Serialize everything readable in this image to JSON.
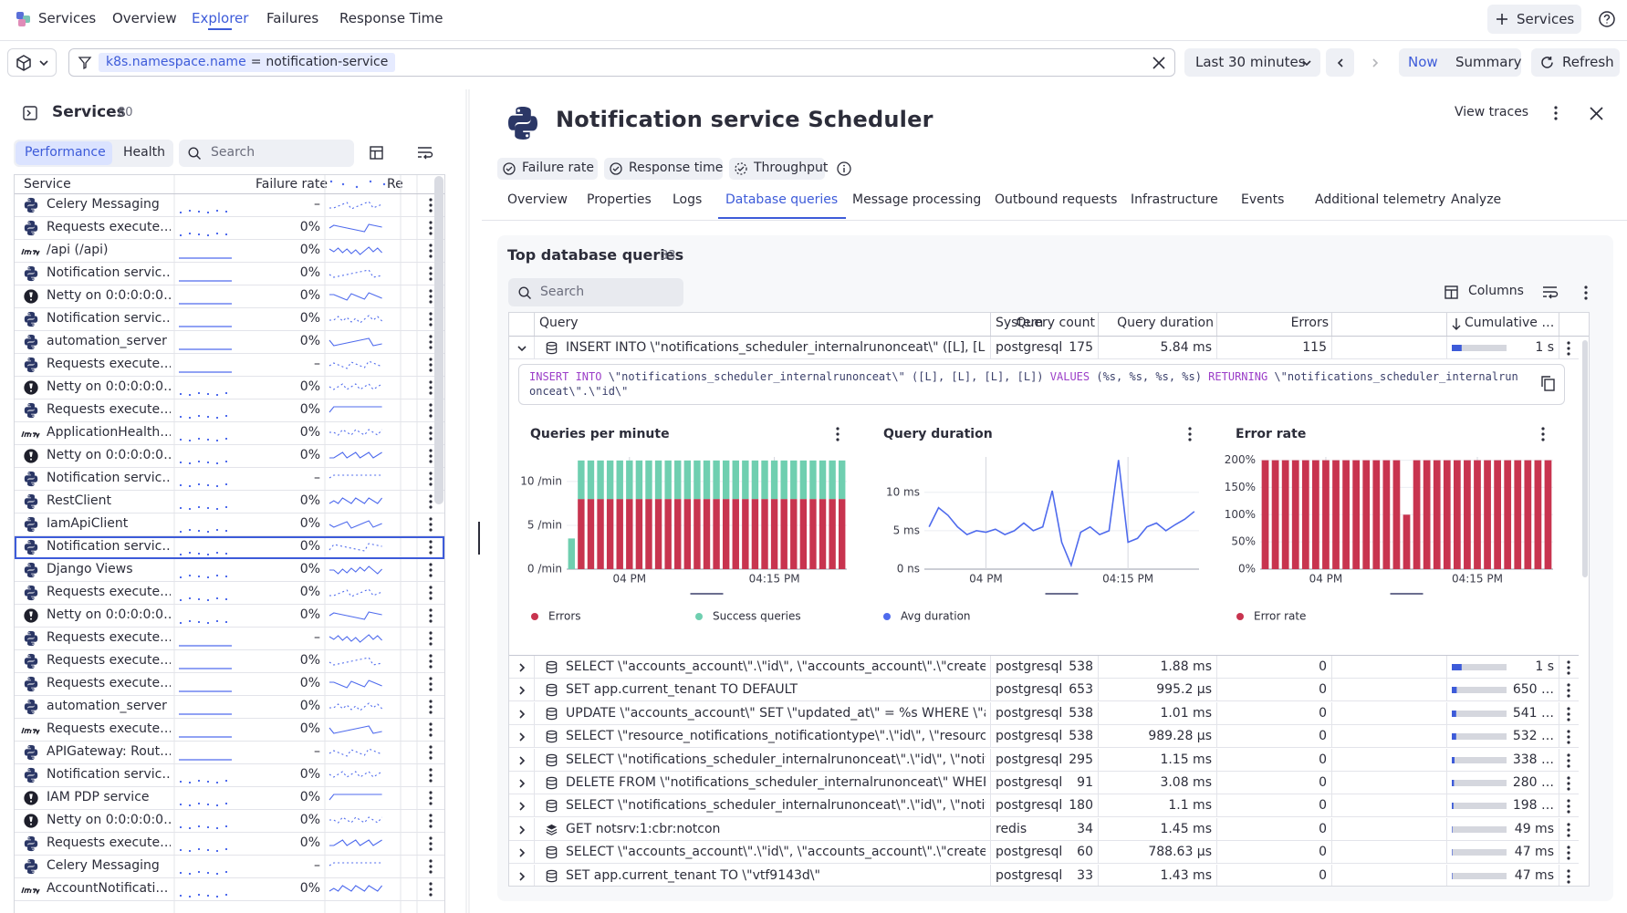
{
  "nav": {
    "app": "Services",
    "tabs": [
      "Overview",
      "Explorer",
      "Failures",
      "Response Time"
    ],
    "active_tab": 1,
    "add_button": "Services"
  },
  "filter": {
    "key": "k8s.namespace.name",
    "operator": "=",
    "value": "notification-service"
  },
  "time": {
    "range": "Last 30 minutes",
    "now": "Now",
    "summary": "Summary",
    "refresh": "Refresh"
  },
  "services_panel": {
    "title": "Services",
    "count": 80,
    "toggle": [
      "Performance",
      "Health"
    ],
    "search_placeholder": "Search",
    "columns": [
      "Service",
      "Failure rate",
      "Re"
    ],
    "selected_row": 15,
    "rows": [
      {
        "name": "Celery Messaging",
        "failure_rate": "–",
        "icon": "python"
      },
      {
        "name": "Requests execute…",
        "failure_rate": "0%",
        "icon": "python"
      },
      {
        "name": "/api (/api)",
        "failure_rate": "0%",
        "icon": "jetty"
      },
      {
        "name": "Notification servic…",
        "failure_rate": "0%",
        "icon": "python"
      },
      {
        "name": "Netty on 0:0:0:0:0…",
        "failure_rate": "0%",
        "icon": "netty"
      },
      {
        "name": "Notification servic…",
        "failure_rate": "0%",
        "icon": "python"
      },
      {
        "name": "automation_server",
        "failure_rate": "0%",
        "icon": "python"
      },
      {
        "name": "Requests execute…",
        "failure_rate": "–",
        "icon": "python"
      },
      {
        "name": "Netty on 0:0:0:0:0…",
        "failure_rate": "0%",
        "icon": "netty"
      },
      {
        "name": "Requests execute…",
        "failure_rate": "0%",
        "icon": "python"
      },
      {
        "name": "ApplicationHealth…",
        "failure_rate": "0%",
        "icon": "jetty"
      },
      {
        "name": "Netty on 0:0:0:0:0…",
        "failure_rate": "0%",
        "icon": "netty"
      },
      {
        "name": "Notification servic…",
        "failure_rate": "–",
        "icon": "python"
      },
      {
        "name": "RestClient",
        "failure_rate": "0%",
        "icon": "python"
      },
      {
        "name": "IamApiClient",
        "failure_rate": "0%",
        "icon": "python"
      },
      {
        "name": "Notification servic…",
        "failure_rate": "0%",
        "icon": "python"
      },
      {
        "name": "Django Views",
        "failure_rate": "0%",
        "icon": "python"
      },
      {
        "name": "Requests execute…",
        "failure_rate": "0%",
        "icon": "python"
      },
      {
        "name": "Netty on 0:0:0:0:0…",
        "failure_rate": "0%",
        "icon": "netty"
      },
      {
        "name": "Requests execute…",
        "failure_rate": "–",
        "icon": "python"
      },
      {
        "name": "Requests execute…",
        "failure_rate": "0%",
        "icon": "python"
      },
      {
        "name": "Requests execute…",
        "failure_rate": "0%",
        "icon": "python"
      },
      {
        "name": "automation_server",
        "failure_rate": "0%",
        "icon": "python"
      },
      {
        "name": "Requests execute…",
        "failure_rate": "0%",
        "icon": "jetty"
      },
      {
        "name": "APIGateway: Rout…",
        "failure_rate": "–",
        "icon": "python"
      },
      {
        "name": "Notification servic…",
        "failure_rate": "0%",
        "icon": "python"
      },
      {
        "name": "IAM PDP service",
        "failure_rate": "0%",
        "icon": "netty"
      },
      {
        "name": "Netty on 0:0:0:0:0…",
        "failure_rate": "0%",
        "icon": "netty"
      },
      {
        "name": "Requests execute…",
        "failure_rate": "0%",
        "icon": "python"
      },
      {
        "name": "Celery Messaging",
        "failure_rate": "–",
        "icon": "python"
      },
      {
        "name": "AccountNotificati…",
        "failure_rate": "0%",
        "icon": "jetty"
      }
    ]
  },
  "detail": {
    "title": "Notification service Scheduler",
    "view_traces": "View traces",
    "chips": [
      "Failure rate",
      "Response time",
      "Throughput"
    ],
    "tabs": [
      "Overview",
      "Properties",
      "Logs",
      "Database queries",
      "Message processing",
      "Outbound requests",
      "Infrastructure",
      "Events",
      "Additional telemetry",
      "Analyze"
    ],
    "active_tab": 3
  },
  "queries": {
    "title": "Top database queries",
    "count": 33,
    "search_placeholder": "Search",
    "columns_button": "Columns",
    "columns": [
      "Query",
      "System",
      "Query count",
      "Query duration",
      "Errors",
      "Cumulative …"
    ],
    "rows": [
      {
        "query": "INSERT INTO \\\"notifications_scheduler_internalrunonceat\\\" ([L], [L], [L]…",
        "system": "postgresql",
        "count": 175,
        "duration": "5.84 ms",
        "errors": 115,
        "cumulative": "1 s",
        "cumulative_fill": 18
      },
      {
        "query": "SELECT \\\"accounts_account\\\".\\\"id\\\", \\\"accounts_account\\\".\\\"created_at\\…",
        "system": "postgresql",
        "count": 538,
        "duration": "1.88 ms",
        "errors": 0,
        "cumulative": "1 s",
        "cumulative_fill": 18
      },
      {
        "query": "SET app.current_tenant TO DEFAULT",
        "system": "postgresql",
        "count": 653,
        "duration": "995.2 µs",
        "errors": 0,
        "cumulative": "650 …",
        "cumulative_fill": 9
      },
      {
        "query": "UPDATE \\\"accounts_account\\\" SET \\\"updated_at\\\" = %s WHERE \\\"accou…",
        "system": "postgresql",
        "count": 538,
        "duration": "1.01 ms",
        "errors": 0,
        "cumulative": "541 …",
        "cumulative_fill": 8
      },
      {
        "query": "SELECT \\\"resource_notifications_notificationtype\\\".\\\"id\\\", \\\"resource_no…",
        "system": "postgresql",
        "count": 538,
        "duration": "989.28 µs",
        "errors": 0,
        "cumulative": "532 …",
        "cumulative_fill": 8
      },
      {
        "query": "SELECT \\\"notifications_scheduler_internalrunonceat\\\".\\\"id\\\", \\\"notificati…",
        "system": "postgresql",
        "count": 295,
        "duration": "1.15 ms",
        "errors": 0,
        "cumulative": "338 …",
        "cumulative_fill": 5
      },
      {
        "query": "DELETE FROM \\\"notifications_scheduler_internalrunonceat\\\" WHERE \\\"…",
        "system": "postgresql",
        "count": 91,
        "duration": "3.08 ms",
        "errors": 0,
        "cumulative": "280 …",
        "cumulative_fill": 4
      },
      {
        "query": "SELECT \\\"notifications_scheduler_internalrunonceat\\\".\\\"id\\\", \\\"notificati…",
        "system": "postgresql",
        "count": 180,
        "duration": "1.1 ms",
        "errors": 0,
        "cumulative": "198 …",
        "cumulative_fill": 3
      },
      {
        "query": "GET notsrv:1:cbr:notcon",
        "system": "redis",
        "count": 34,
        "duration": "1.45 ms",
        "errors": 0,
        "cumulative": "49 ms",
        "cumulative_fill": 1
      },
      {
        "query": "SELECT \\\"accounts_account\\\".\\\"id\\\", \\\"accounts_account\\\".\\\"created_at\\…",
        "system": "postgresql",
        "count": 60,
        "duration": "788.63 µs",
        "errors": 0,
        "cumulative": "47 ms",
        "cumulative_fill": 1
      },
      {
        "query": "SET app.current_tenant TO \\\"vtf9143d\\\"",
        "system": "postgresql",
        "count": 33,
        "duration": "1.43 ms",
        "errors": 0,
        "cumulative": "47 ms",
        "cumulative_fill": 1
      }
    ],
    "expanded": {
      "sql_parts": [
        {
          "text": "INSERT INTO",
          "keyword": true
        },
        {
          "text": " \\\"notifications_scheduler_internalrunonceat\\\" ([L], [L], [L], [L]) ",
          "keyword": false
        },
        {
          "text": "VALUES",
          "keyword": true
        },
        {
          "text": " (%s, %s, %s, %s) ",
          "keyword": false
        },
        {
          "text": "RETURNING",
          "keyword": true
        },
        {
          "text": " \\\"notifications_scheduler_internalrunonceat\\\".\\\"id\\\"",
          "keyword": false
        }
      ],
      "charts": [
        {
          "type": "stacked_bar",
          "title": "Queries per minute",
          "categories": [
            null,
            null,
            null,
            null,
            null,
            null,
            "04 PM",
            null,
            null,
            null,
            null,
            null,
            null,
            null,
            null,
            null,
            null,
            null,
            null,
            null,
            null,
            "04:15 PM",
            null,
            null,
            null,
            null,
            null,
            null,
            null
          ],
          "series": [
            {
              "name": "Errors",
              "color": "#c8344f",
              "values": [
                0,
                8,
                8,
                8,
                8,
                8,
                8,
                8,
                8,
                8,
                8,
                8,
                8,
                8,
                8,
                8,
                8,
                8,
                8,
                8,
                8,
                8,
                8,
                8,
                8,
                8,
                8,
                8,
                8
              ]
            },
            {
              "name": "Success queries",
              "color": "#6fcfb0",
              "values": [
                3.5,
                4.4,
                4.4,
                4.4,
                4.4,
                4.4,
                4.4,
                4.4,
                4.4,
                4.4,
                4.4,
                4.4,
                4.4,
                4.4,
                4.4,
                4.4,
                4.4,
                4.4,
                4.4,
                4.4,
                4.4,
                4.4,
                4.4,
                4.4,
                4.4,
                4.4,
                4.4,
                4.4,
                4.4
              ]
            }
          ],
          "ylim": [
            0,
            12.8
          ],
          "yticks": [
            {
              "value": 0,
              "label": "0 /min"
            },
            {
              "value": 5,
              "label": "5 /min"
            },
            {
              "value": 10,
              "label": "10 /min"
            }
          ]
        },
        {
          "type": "line",
          "title": "Query duration",
          "categories": [
            null,
            null,
            null,
            null,
            null,
            null,
            "04 PM",
            null,
            null,
            null,
            null,
            null,
            null,
            null,
            null,
            null,
            null,
            null,
            null,
            null,
            null,
            "04:15 PM",
            null,
            null,
            null,
            null,
            null,
            null,
            null
          ],
          "series": [
            {
              "name": "Avg duration",
              "color": "#4f6bed",
              "values": [
                5.5,
                8,
                7,
                5.5,
                4.5,
                5,
                4.8,
                5.2,
                4.5,
                5,
                6,
                5,
                5.5,
                10.2,
                3.5,
                0.5,
                4.8,
                5.5,
                4.5,
                5,
                14.2,
                3.5,
                4,
                5.5,
                6,
                5,
                5.8,
                6.5,
                7.5
              ]
            }
          ],
          "ylim": [
            0,
            14.6
          ],
          "yticks": [
            {
              "value": 0,
              "label": "0 ns"
            },
            {
              "value": 5,
              "label": "5 ms"
            },
            {
              "value": 10,
              "label": "10 ms"
            }
          ]
        },
        {
          "type": "bar",
          "title": "Error rate",
          "categories": [
            null,
            null,
            null,
            null,
            null,
            null,
            "04 PM",
            null,
            null,
            null,
            null,
            null,
            null,
            null,
            null,
            null,
            null,
            null,
            null,
            null,
            null,
            "04:15 PM",
            null,
            null,
            null,
            null,
            null,
            null,
            null
          ],
          "series": [
            {
              "name": "Error rate",
              "color": "#c8344f",
              "values": [
                200,
                200,
                200,
                200,
                200,
                200,
                200,
                200,
                200,
                200,
                200,
                200,
                200,
                200,
                100,
                200,
                200,
                200,
                200,
                200,
                200,
                200,
                200,
                200,
                200,
                200,
                200,
                200,
                200
              ]
            }
          ],
          "ylim": [
            0,
            206
          ],
          "yticks": [
            {
              "value": 0,
              "label": "0%"
            },
            {
              "value": 50,
              "label": "50%"
            },
            {
              "value": 100,
              "label": "100%"
            },
            {
              "value": 150,
              "label": "150%"
            },
            {
              "value": 200,
              "label": "200%"
            }
          ]
        }
      ]
    }
  }
}
